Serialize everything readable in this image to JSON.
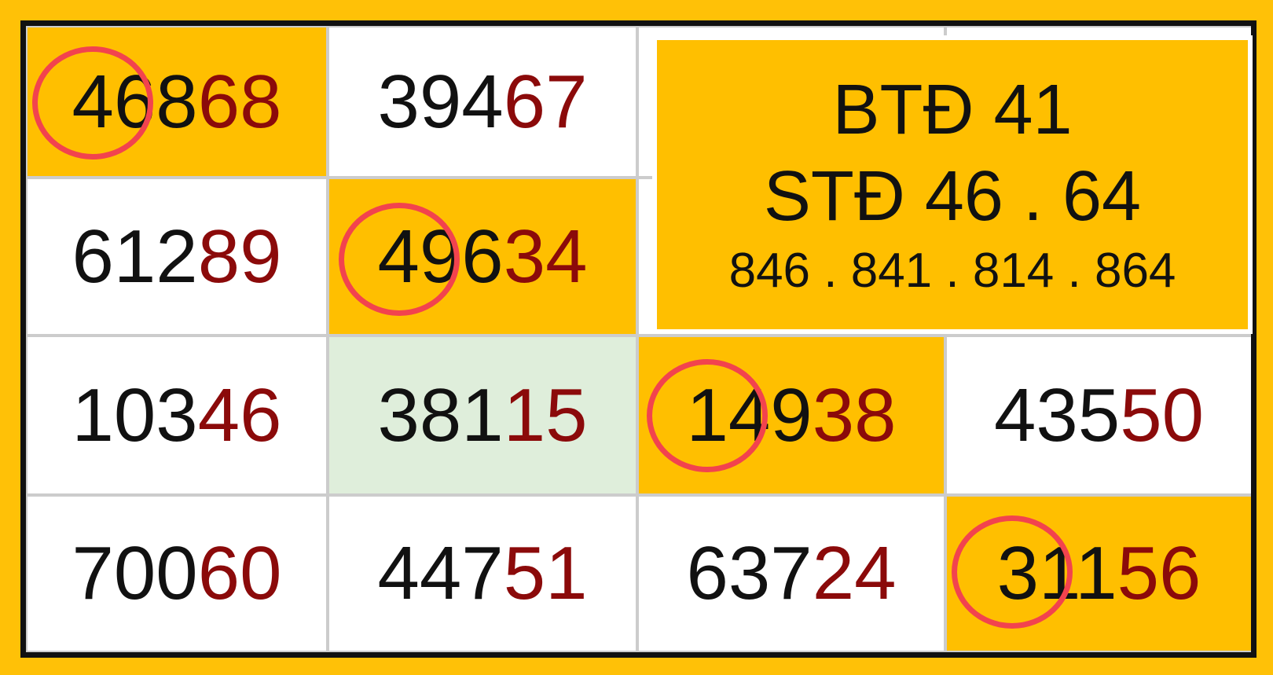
{
  "cells": [
    {
      "head": "468",
      "tail": "68",
      "style": "highlight",
      "circled": "46"
    },
    {
      "head": "394",
      "tail": "67",
      "style": "white"
    },
    {
      "head": "612",
      "tail": "89",
      "style": "white"
    },
    {
      "head": "496",
      "tail": "34",
      "style": "highlight",
      "circled": "49"
    },
    {
      "head": "103",
      "tail": "46",
      "style": "white"
    },
    {
      "head": "381",
      "tail": "15",
      "style": "green"
    },
    {
      "head": "149",
      "tail": "38",
      "style": "highlight",
      "circled": "14"
    },
    {
      "head": "435",
      "tail": "50",
      "style": "white"
    },
    {
      "head": "700",
      "tail": "60",
      "style": "white"
    },
    {
      "head": "447",
      "tail": "51",
      "style": "white"
    },
    {
      "head": "637",
      "tail": "24",
      "style": "white"
    },
    {
      "head": "311",
      "tail": "56",
      "style": "highlight",
      "circled": "31"
    }
  ],
  "summary": {
    "line1": "BTĐ 41",
    "line2": "STĐ 46 . 64",
    "line3": "846 . 841 . 814 . 864"
  },
  "colors": {
    "background": "#FFC107",
    "highlight": "#FFBF00",
    "green": "#DFEEDB",
    "tail": "#8B0A0A",
    "circle": "#F2434E"
  }
}
